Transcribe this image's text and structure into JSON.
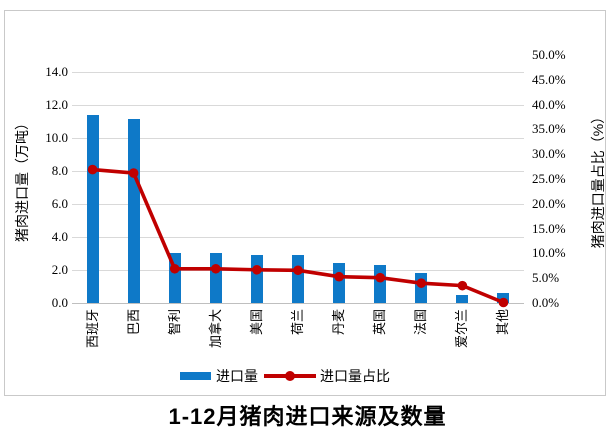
{
  "colors": {
    "bar": "#0e79c8",
    "line": "#c00000",
    "gridline": "#d9d9d9",
    "axis_line": "#bfbfbf",
    "border": "#c9c9c9"
  },
  "chart_data": {
    "type": "combo-bar-line",
    "title": "1-12月猪肉进口来源及数量",
    "categories": [
      "西班牙",
      "巴西",
      "智利",
      "加拿大",
      "美国",
      "荷兰",
      "丹麦",
      "英国",
      "法国",
      "爱尔兰",
      "其他"
    ],
    "series": [
      {
        "name": "进口量",
        "type": "bar",
        "axis": "left",
        "color": "#0e79c8",
        "values": [
          11.4,
          11.1,
          3.0,
          3.0,
          2.9,
          2.9,
          2.4,
          2.3,
          1.8,
          0.5,
          0.6
        ]
      },
      {
        "name": "进口量占比",
        "type": "line",
        "axis": "right",
        "color": "#c00000",
        "values": [
          26.9,
          26.2,
          6.9,
          6.9,
          6.7,
          6.6,
          5.3,
          5.1,
          4.0,
          3.5,
          0.1
        ]
      }
    ],
    "left_axis": {
      "title": "猪肉进口量（万吨）",
      "min": 0,
      "max": 15,
      "tick_values": [
        0,
        2,
        4,
        6,
        8,
        10,
        12,
        14
      ],
      "ticks": [
        "0.0",
        "2.0",
        "4.0",
        "6.0",
        "8.0",
        "10.0",
        "12.0",
        "14.0"
      ]
    },
    "right_axis": {
      "title": "猪肉进口量占比（%）",
      "min": 0,
      "max": 50,
      "tick_values": [
        0,
        5,
        10,
        15,
        20,
        25,
        30,
        35,
        40,
        45,
        50
      ],
      "ticks": [
        "0.0%",
        "5.0%",
        "10.0%",
        "15.0%",
        "20.0%",
        "25.0%",
        "30.0%",
        "35.0%",
        "40.0%",
        "45.0%",
        "50.0%"
      ]
    },
    "grid": "horizontal",
    "legend_position": "bottom"
  }
}
